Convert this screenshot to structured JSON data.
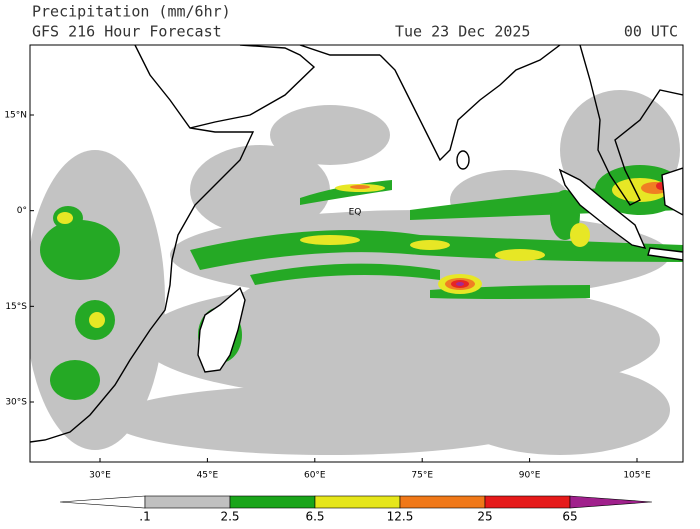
{
  "header": {
    "title": "Precipitation (mm/6hr)",
    "subtitle": "GFS 216 Hour Forecast",
    "date": "Tue 23 Dec 2025",
    "time": "00 UTC"
  },
  "map": {
    "lat_ticks": [
      {
        "value": 15,
        "label": "15°N"
      },
      {
        "value": 0,
        "label": "0°"
      },
      {
        "value": -15,
        "label": "15°S"
      },
      {
        "value": -30,
        "label": "30°S"
      }
    ],
    "lon_ticks": [
      {
        "value": 30,
        "label": "30°E"
      },
      {
        "value": 45,
        "label": "45°E"
      },
      {
        "value": 60,
        "label": "60°E"
      },
      {
        "value": 75,
        "label": "75°E"
      },
      {
        "value": 90,
        "label": "90°E"
      },
      {
        "value": 105,
        "label": "105°E"
      }
    ],
    "equator_label": "EQ"
  },
  "colorbar": {
    "levels": [
      {
        "value": 0.1,
        "label": ".1"
      },
      2.5,
      6.5,
      12.5,
      25,
      65
    ],
    "colors": [
      "#ffffff",
      "#c0c0c0",
      "#1aa51a",
      "#e6e61a",
      "#f07818",
      "#e61a1a",
      "#a0208c"
    ]
  }
}
